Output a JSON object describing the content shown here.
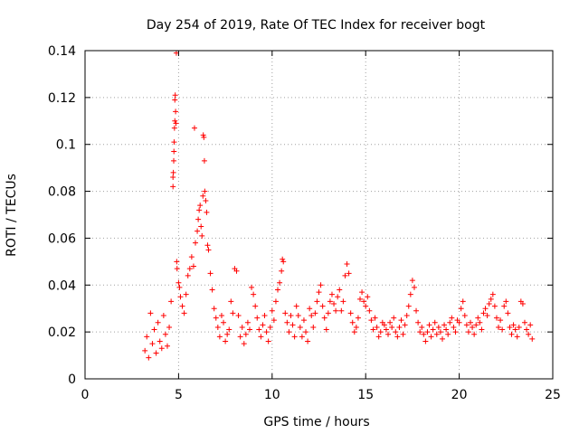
{
  "chart_data": {
    "type": "scatter",
    "title": "Day 254 of 2019, Rate Of TEC Index for receiver bogt",
    "xlabel": "GPS time / hours",
    "ylabel": "ROTI / TECUs",
    "xlim": [
      0,
      25
    ],
    "ylim": [
      0,
      0.14
    ],
    "xticks": [
      0,
      5,
      10,
      15,
      20,
      25
    ],
    "yticks": [
      0,
      0.02,
      0.04,
      0.06,
      0.08,
      0.1,
      0.12,
      0.14
    ],
    "xtick_labels": [
      "0",
      "5",
      "10",
      "15",
      "20",
      "25"
    ],
    "ytick_labels": [
      "0",
      "0.02",
      "0.04",
      "0.06",
      "0.08",
      "0.1",
      "0.12",
      "0.14"
    ],
    "grid": true,
    "marker": "+",
    "colors": {
      "series": "#ff0000",
      "grid": "#a0a0a0",
      "axis": "#000000"
    },
    "series": [
      {
        "name": "ROTI",
        "points": [
          [
            3.2,
            0.012
          ],
          [
            3.3,
            0.018
          ],
          [
            3.4,
            0.009
          ],
          [
            3.5,
            0.028
          ],
          [
            3.6,
            0.015
          ],
          [
            3.7,
            0.021
          ],
          [
            3.8,
            0.011
          ],
          [
            3.9,
            0.024
          ],
          [
            4.0,
            0.016
          ],
          [
            4.1,
            0.013
          ],
          [
            4.2,
            0.027
          ],
          [
            4.3,
            0.019
          ],
          [
            4.4,
            0.014
          ],
          [
            4.5,
            0.022
          ],
          [
            4.6,
            0.033
          ],
          [
            4.7,
            0.082
          ],
          [
            4.7,
            0.086
          ],
          [
            4.72,
            0.088
          ],
          [
            4.74,
            0.093
          ],
          [
            4.75,
            0.097
          ],
          [
            4.76,
            0.101
          ],
          [
            4.78,
            0.107
          ],
          [
            4.8,
            0.11
          ],
          [
            4.8,
            0.119
          ],
          [
            4.82,
            0.121
          ],
          [
            4.84,
            0.114
          ],
          [
            4.86,
            0.109
          ],
          [
            4.88,
            0.139
          ],
          [
            4.9,
            0.05
          ],
          [
            4.92,
            0.047
          ],
          [
            5.0,
            0.041
          ],
          [
            5.05,
            0.039
          ],
          [
            5.1,
            0.035
          ],
          [
            5.2,
            0.031
          ],
          [
            5.3,
            0.028
          ],
          [
            5.4,
            0.036
          ],
          [
            5.5,
            0.044
          ],
          [
            5.6,
            0.047
          ],
          [
            5.7,
            0.052
          ],
          [
            5.8,
            0.048
          ],
          [
            5.85,
            0.107
          ],
          [
            5.9,
            0.058
          ],
          [
            6.0,
            0.063
          ],
          [
            6.05,
            0.068
          ],
          [
            6.1,
            0.072
          ],
          [
            6.15,
            0.074
          ],
          [
            6.2,
            0.065
          ],
          [
            6.25,
            0.061
          ],
          [
            6.3,
            0.078
          ],
          [
            6.32,
            0.104
          ],
          [
            6.35,
            0.103
          ],
          [
            6.38,
            0.093
          ],
          [
            6.4,
            0.08
          ],
          [
            6.45,
            0.076
          ],
          [
            6.5,
            0.071
          ],
          [
            6.55,
            0.057
          ],
          [
            6.6,
            0.055
          ],
          [
            6.7,
            0.045
          ],
          [
            6.8,
            0.038
          ],
          [
            6.9,
            0.03
          ],
          [
            7.0,
            0.026
          ],
          [
            7.1,
            0.022
          ],
          [
            7.2,
            0.018
          ],
          [
            7.3,
            0.027
          ],
          [
            7.4,
            0.024
          ],
          [
            7.5,
            0.016
          ],
          [
            7.6,
            0.019
          ],
          [
            7.7,
            0.021
          ],
          [
            7.8,
            0.033
          ],
          [
            7.9,
            0.028
          ],
          [
            8.0,
            0.047
          ],
          [
            8.1,
            0.046
          ],
          [
            8.2,
            0.027
          ],
          [
            8.3,
            0.018
          ],
          [
            8.4,
            0.022
          ],
          [
            8.5,
            0.015
          ],
          [
            8.6,
            0.019
          ],
          [
            8.7,
            0.024
          ],
          [
            8.8,
            0.021
          ],
          [
            8.9,
            0.039
          ],
          [
            9.0,
            0.036
          ],
          [
            9.1,
            0.031
          ],
          [
            9.2,
            0.026
          ],
          [
            9.3,
            0.021
          ],
          [
            9.4,
            0.018
          ],
          [
            9.5,
            0.023
          ],
          [
            9.6,
            0.027
          ],
          [
            9.7,
            0.02
          ],
          [
            9.8,
            0.016
          ],
          [
            9.9,
            0.022
          ],
          [
            10.0,
            0.029
          ],
          [
            10.1,
            0.025
          ],
          [
            10.2,
            0.033
          ],
          [
            10.3,
            0.038
          ],
          [
            10.4,
            0.041
          ],
          [
            10.5,
            0.046
          ],
          [
            10.55,
            0.051
          ],
          [
            10.6,
            0.05
          ],
          [
            10.7,
            0.028
          ],
          [
            10.8,
            0.024
          ],
          [
            10.9,
            0.02
          ],
          [
            11.0,
            0.027
          ],
          [
            11.1,
            0.023
          ],
          [
            11.2,
            0.018
          ],
          [
            11.3,
            0.031
          ],
          [
            11.4,
            0.027
          ],
          [
            11.5,
            0.022
          ],
          [
            11.6,
            0.018
          ],
          [
            11.7,
            0.025
          ],
          [
            11.8,
            0.02
          ],
          [
            11.9,
            0.016
          ],
          [
            12.0,
            0.03
          ],
          [
            12.1,
            0.027
          ],
          [
            12.2,
            0.022
          ],
          [
            12.3,
            0.028
          ],
          [
            12.4,
            0.033
          ],
          [
            12.5,
            0.037
          ],
          [
            12.6,
            0.04
          ],
          [
            12.7,
            0.031
          ],
          [
            12.8,
            0.026
          ],
          [
            12.9,
            0.021
          ],
          [
            13.0,
            0.028
          ],
          [
            13.1,
            0.033
          ],
          [
            13.2,
            0.036
          ],
          [
            13.3,
            0.032
          ],
          [
            13.4,
            0.029
          ],
          [
            13.5,
            0.035
          ],
          [
            13.6,
            0.038
          ],
          [
            13.7,
            0.029
          ],
          [
            13.8,
            0.033
          ],
          [
            13.9,
            0.044
          ],
          [
            14.0,
            0.049
          ],
          [
            14.1,
            0.045
          ],
          [
            14.2,
            0.028
          ],
          [
            14.3,
            0.024
          ],
          [
            14.4,
            0.02
          ],
          [
            14.5,
            0.022
          ],
          [
            14.6,
            0.026
          ],
          [
            14.7,
            0.034
          ],
          [
            14.8,
            0.037
          ],
          [
            14.9,
            0.033
          ],
          [
            15.0,
            0.031
          ],
          [
            15.1,
            0.035
          ],
          [
            15.2,
            0.029
          ],
          [
            15.3,
            0.025
          ],
          [
            15.4,
            0.021
          ],
          [
            15.5,
            0.026
          ],
          [
            15.6,
            0.022
          ],
          [
            15.7,
            0.018
          ],
          [
            15.8,
            0.02
          ],
          [
            15.9,
            0.024
          ],
          [
            16.0,
            0.023
          ],
          [
            16.1,
            0.021
          ],
          [
            16.2,
            0.019
          ],
          [
            16.3,
            0.024
          ],
          [
            16.4,
            0.022
          ],
          [
            16.5,
            0.026
          ],
          [
            16.6,
            0.02
          ],
          [
            16.7,
            0.018
          ],
          [
            16.8,
            0.022
          ],
          [
            16.9,
            0.025
          ],
          [
            17.0,
            0.019
          ],
          [
            17.1,
            0.023
          ],
          [
            17.2,
            0.027
          ],
          [
            17.3,
            0.031
          ],
          [
            17.4,
            0.036
          ],
          [
            17.5,
            0.042
          ],
          [
            17.6,
            0.039
          ],
          [
            17.7,
            0.029
          ],
          [
            17.8,
            0.024
          ],
          [
            17.9,
            0.02
          ],
          [
            18.0,
            0.022
          ],
          [
            18.1,
            0.019
          ],
          [
            18.2,
            0.016
          ],
          [
            18.3,
            0.02
          ],
          [
            18.4,
            0.023
          ],
          [
            18.5,
            0.018
          ],
          [
            18.6,
            0.021
          ],
          [
            18.7,
            0.024
          ],
          [
            18.8,
            0.019
          ],
          [
            18.9,
            0.022
          ],
          [
            19.0,
            0.02
          ],
          [
            19.1,
            0.017
          ],
          [
            19.2,
            0.023
          ],
          [
            19.3,
            0.021
          ],
          [
            19.4,
            0.019
          ],
          [
            19.5,
            0.024
          ],
          [
            19.6,
            0.026
          ],
          [
            19.7,
            0.022
          ],
          [
            19.8,
            0.02
          ],
          [
            19.9,
            0.025
          ],
          [
            20.0,
            0.024
          ],
          [
            20.1,
            0.03
          ],
          [
            20.2,
            0.033
          ],
          [
            20.3,
            0.027
          ],
          [
            20.4,
            0.023
          ],
          [
            20.5,
            0.02
          ],
          [
            20.6,
            0.024
          ],
          [
            20.7,
            0.022
          ],
          [
            20.8,
            0.019
          ],
          [
            20.9,
            0.023
          ],
          [
            21.0,
            0.026
          ],
          [
            21.1,
            0.024
          ],
          [
            21.2,
            0.021
          ],
          [
            21.3,
            0.028
          ],
          [
            21.4,
            0.03
          ],
          [
            21.5,
            0.027
          ],
          [
            21.6,
            0.032
          ],
          [
            21.7,
            0.034
          ],
          [
            21.8,
            0.036
          ],
          [
            21.9,
            0.031
          ],
          [
            22.0,
            0.026
          ],
          [
            22.1,
            0.022
          ],
          [
            22.2,
            0.025
          ],
          [
            22.3,
            0.021
          ],
          [
            22.4,
            0.031
          ],
          [
            22.5,
            0.033
          ],
          [
            22.6,
            0.028
          ],
          [
            22.7,
            0.022
          ],
          [
            22.8,
            0.019
          ],
          [
            22.9,
            0.023
          ],
          [
            23.0,
            0.021
          ],
          [
            23.1,
            0.018
          ],
          [
            23.2,
            0.022
          ],
          [
            23.3,
            0.033
          ],
          [
            23.4,
            0.032
          ],
          [
            23.5,
            0.024
          ],
          [
            23.6,
            0.021
          ],
          [
            23.7,
            0.019
          ],
          [
            23.8,
            0.023
          ],
          [
            23.9,
            0.017
          ]
        ]
      }
    ]
  }
}
